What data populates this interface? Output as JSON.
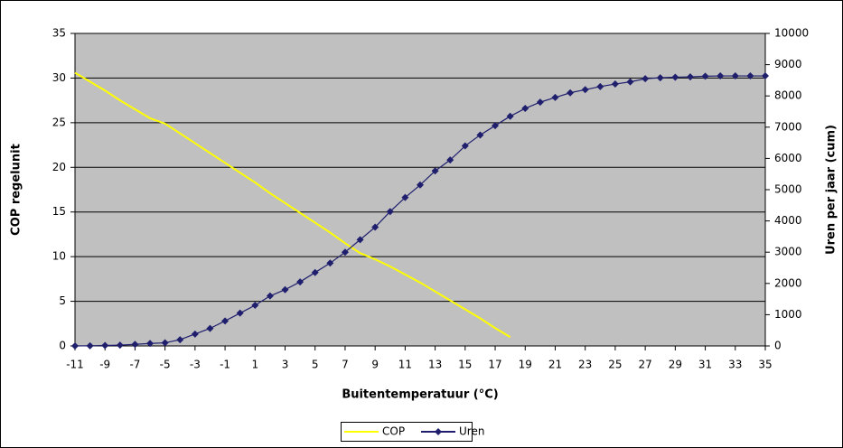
{
  "chart_data": {
    "type": "line",
    "x_label": "Buitentemperatuur (°C)",
    "y_label": "COP regelunit",
    "y2_label": "Uren per jaar (cum)",
    "x": [
      -11,
      -10,
      -9,
      -8,
      -7,
      -6,
      -5,
      -4,
      -3,
      -2,
      -1,
      0,
      1,
      2,
      3,
      4,
      5,
      6,
      7,
      8,
      9,
      10,
      11,
      12,
      13,
      14,
      15,
      16,
      17,
      18,
      19,
      20,
      21,
      22,
      23,
      24,
      25,
      26,
      27,
      28,
      29,
      30,
      31,
      32,
      33,
      34,
      35
    ],
    "xlim": [
      -11,
      35
    ],
    "xticks": [
      -11,
      -9,
      -7,
      -5,
      -3,
      -1,
      1,
      3,
      5,
      7,
      9,
      11,
      13,
      15,
      17,
      19,
      21,
      23,
      25,
      27,
      29,
      31,
      33,
      35
    ],
    "ylim": [
      0,
      35
    ],
    "yticks": [
      0,
      5,
      10,
      15,
      20,
      25,
      30,
      35
    ],
    "y2lim": [
      0,
      10000
    ],
    "y2ticks": [
      0,
      1000,
      2000,
      3000,
      4000,
      5000,
      6000,
      7000,
      8000,
      9000,
      10000
    ],
    "grid": true,
    "legend": "bottom",
    "series": [
      {
        "name": "COP",
        "color": "#ffff00",
        "marker": "none",
        "values": [
          30.6,
          29.6,
          28.6,
          27.5,
          26.5,
          25.5,
          24.9,
          23.8,
          22.7,
          21.6,
          20.5,
          19.4,
          18.3,
          17.1,
          16.0,
          14.9,
          13.8,
          12.7,
          11.5,
          10.4,
          9.7,
          8.9,
          8.0,
          7.1,
          6.1,
          5.1,
          4.1,
          3.1,
          2.0,
          1.0,
          null,
          null,
          null,
          null,
          null,
          null,
          null,
          null,
          null,
          null,
          null,
          null,
          null,
          null,
          null,
          null,
          null
        ]
      },
      {
        "name": "Uren",
        "color": "#1f1f6e",
        "marker": "diamond",
        "axis": "y2",
        "values": [
          0,
          5,
          15,
          25,
          50,
          80,
          100,
          200,
          380,
          560,
          800,
          1050,
          1300,
          1600,
          1800,
          2050,
          2350,
          2650,
          3000,
          3400,
          3800,
          4300,
          4750,
          5150,
          5600,
          5950,
          6400,
          6750,
          7050,
          7350,
          7600,
          7800,
          7950,
          8100,
          8200,
          8300,
          8380,
          8450,
          8550,
          8580,
          8600,
          8610,
          8630,
          8640,
          8640,
          8640,
          8640
        ]
      }
    ]
  }
}
